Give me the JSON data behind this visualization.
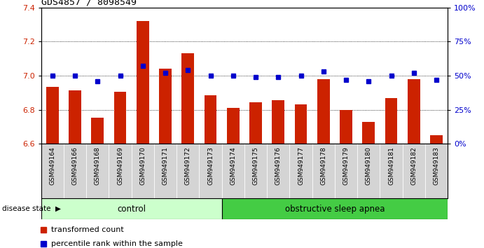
{
  "title": "GDS4857 / 8098549",
  "samples": [
    "GSM949164",
    "GSM949166",
    "GSM949168",
    "GSM949169",
    "GSM949170",
    "GSM949171",
    "GSM949172",
    "GSM949173",
    "GSM949174",
    "GSM949175",
    "GSM949176",
    "GSM949177",
    "GSM949178",
    "GSM949179",
    "GSM949180",
    "GSM949181",
    "GSM949182",
    "GSM949183"
  ],
  "bar_values": [
    6.935,
    6.915,
    6.755,
    6.905,
    7.32,
    7.04,
    7.13,
    6.885,
    6.81,
    6.845,
    6.855,
    6.83,
    6.98,
    6.8,
    6.73,
    6.87,
    6.98,
    6.65
  ],
  "percentile_values": [
    50,
    50,
    46,
    50,
    57,
    52,
    54,
    50,
    50,
    49,
    49,
    50,
    53,
    47,
    46,
    50,
    52,
    47
  ],
  "control_count": 8,
  "ylim_left": [
    6.6,
    7.4
  ],
  "ylim_right": [
    0,
    100
  ],
  "yticks_left": [
    6.6,
    6.8,
    7.0,
    7.2,
    7.4
  ],
  "yticks_right": [
    0,
    25,
    50,
    75,
    100
  ],
  "ytick_labels_right": [
    "0%",
    "25%",
    "50%",
    "75%",
    "100%"
  ],
  "bar_color": "#cc2200",
  "dot_color": "#0000cc",
  "control_color": "#ccffcc",
  "apnea_color": "#44cc44",
  "tick_bg_color": "#d4d4d4",
  "legend_bar_label": "transformed count",
  "legend_dot_label": "percentile rank within the sample",
  "group_label_control": "control",
  "group_label_apnea": "obstructive sleep apnea",
  "disease_state_label": "disease state"
}
